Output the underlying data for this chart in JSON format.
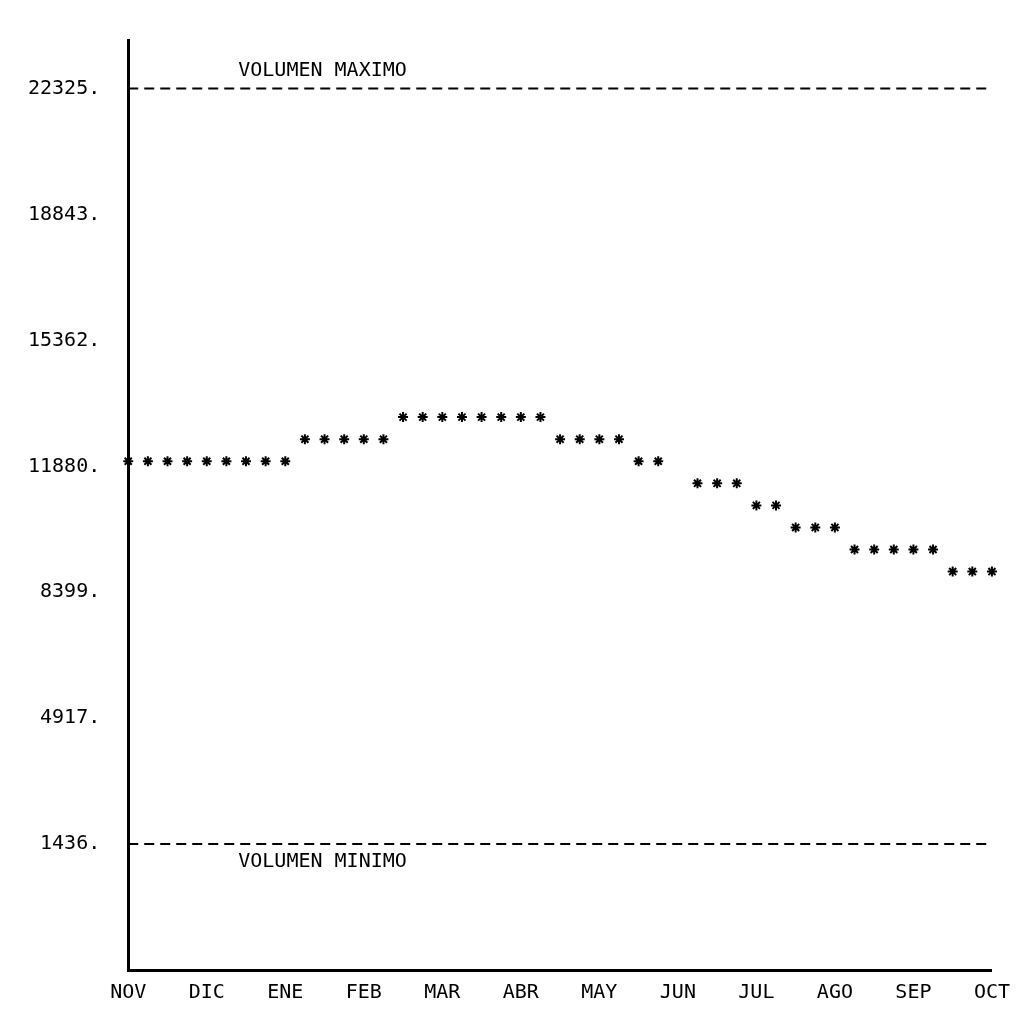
{
  "chart_data": {
    "type": "scatter",
    "color": "#000000",
    "marker": "cross",
    "grid": false,
    "legend": false,
    "categories": [
      "NOV",
      null,
      null,
      null,
      "DIC",
      null,
      null,
      null,
      "ENE",
      null,
      null,
      null,
      "FEB",
      null,
      null,
      null,
      "MAR",
      null,
      null,
      null,
      "ABR",
      null,
      null,
      null,
      "MAY",
      null,
      null,
      null,
      "JUN",
      null,
      null,
      null,
      "JUL",
      null,
      null,
      null,
      "AGO",
      null,
      null,
      null,
      "SEP",
      null,
      null,
      null,
      "OCT"
    ],
    "values": [
      12020,
      12020,
      12020,
      12020,
      12020,
      12020,
      12020,
      12020,
      12020,
      12630,
      12630,
      12630,
      12630,
      12630,
      13240,
      13240,
      13240,
      13240,
      13240,
      13240,
      13240,
      13240,
      12630,
      12630,
      12630,
      12630,
      12020,
      12020,
      null,
      11410,
      11410,
      11410,
      10800,
      10800,
      10190,
      10190,
      10190,
      9580,
      9580,
      9580,
      9580,
      9580,
      8970,
      8970,
      8970
    ],
    "ylim": [
      -2045,
      23666
    ],
    "yticks": [
      {
        "value": 1436,
        "label": "1436."
      },
      {
        "value": 4917,
        "label": "4917."
      },
      {
        "value": 8399,
        "label": "8399."
      },
      {
        "value": 11880,
        "label": "11880."
      },
      {
        "value": 15362,
        "label": "15362."
      },
      {
        "value": 18843,
        "label": "18843."
      },
      {
        "value": 22325,
        "label": "22325."
      }
    ],
    "ref_lines": [
      {
        "axis": "y",
        "value": 22325,
        "label": "VOLUMEN MAXIMO",
        "color": "#000000",
        "line_style": "dashed"
      },
      {
        "axis": "y",
        "value": 1436,
        "label": "VOLUMEN MINIMO",
        "color": "#000000",
        "line_style": "dashed"
      }
    ]
  }
}
